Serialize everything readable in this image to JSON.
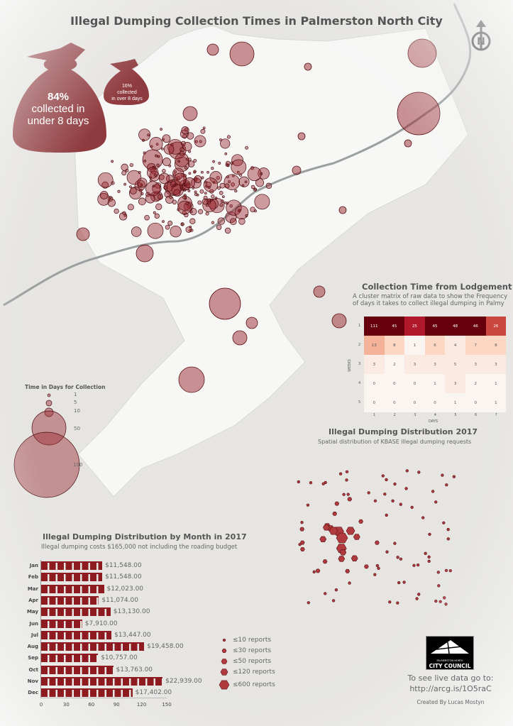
{
  "title": "Illegal Dumping Collection Times in Palmerston North City",
  "north_arrow": {
    "icon": "north-arrow-icon",
    "label": "N"
  },
  "bags": {
    "large": {
      "percent": "84%",
      "line1": "collected in",
      "line2": "under 8 days"
    },
    "small": {
      "percent": "16%",
      "line1": "collected",
      "line2": "in over 8 days"
    },
    "color": "#8f3a3e"
  },
  "size_legend": {
    "title": "Time in Days for Collection",
    "items": [
      "1",
      "5",
      "10",
      "50",
      "100"
    ]
  },
  "matrix": {
    "title": "Collection Time from Lodgement",
    "subtitle_line1": "A cluster matrix of raw data to show the Frequency",
    "subtitle_line2": "of days it takes to collect illegal dumping in Palmy",
    "y_label": "WEEKS",
    "x_label": "DAYS",
    "row_labels": [
      "1",
      "2",
      "3",
      "4",
      "5"
    ],
    "col_labels": [
      "1",
      "2",
      "3",
      "4",
      "5",
      "6",
      "7"
    ],
    "values": [
      [
        111,
        45,
        25,
        45,
        48,
        46,
        26
      ],
      [
        13,
        8,
        1,
        6,
        4,
        7,
        8
      ],
      [
        3,
        2,
        3,
        3,
        5,
        3,
        3
      ],
      [
        0,
        0,
        0,
        1,
        3,
        2,
        1
      ],
      [
        0,
        0,
        0,
        0,
        1,
        0,
        1
      ]
    ]
  },
  "distribution": {
    "title": "Illegal Dumping Distribution 2017",
    "subtitle": "Spatial distribution of KBASE illegal dumping requests",
    "legend": [
      "≤10 reports",
      "≤30 reports",
      "≤50 reports",
      "≤120 reports",
      "≤600 reports"
    ]
  },
  "chart_data": {
    "type": "bar",
    "orientation": "horizontal",
    "title": "Illegal Dumping Distribution by Month in 2017",
    "subtitle": "Illegal dumping costs $165,000 not including the roading budget",
    "categories": [
      "Jan",
      "Feb",
      "Mar",
      "Apr",
      "May",
      "Jun",
      "Jul",
      "Aug",
      "Sep",
      "Oct",
      "Nov",
      "Dec"
    ],
    "values": [
      73,
      73,
      75,
      69,
      83,
      49,
      84,
      123,
      68,
      86,
      145,
      109
    ],
    "data_labels": [
      "$11,548.00",
      "$11,548.00",
      "$12,023.00",
      "$11,074.00",
      "$13,130.00",
      "$7,910.00",
      "$13,447.00",
      "$19,458.00",
      "$10,757.00",
      "$13,763.00",
      "$22,939.00",
      "$17,402.00"
    ],
    "xlim": [
      0,
      150
    ],
    "x_ticks": [
      "0",
      "30",
      "60",
      "90",
      "120",
      "150"
    ],
    "bar_color": "#8e1b20"
  },
  "logo": {
    "line1": "PALMERSTON NORTH",
    "line2": "CITY COUNCIL"
  },
  "live_data": {
    "line1": "To see live data go to:",
    "line2": "http://arcg.is/1O5raC"
  },
  "credit": "Created By Lucas Mostyn"
}
